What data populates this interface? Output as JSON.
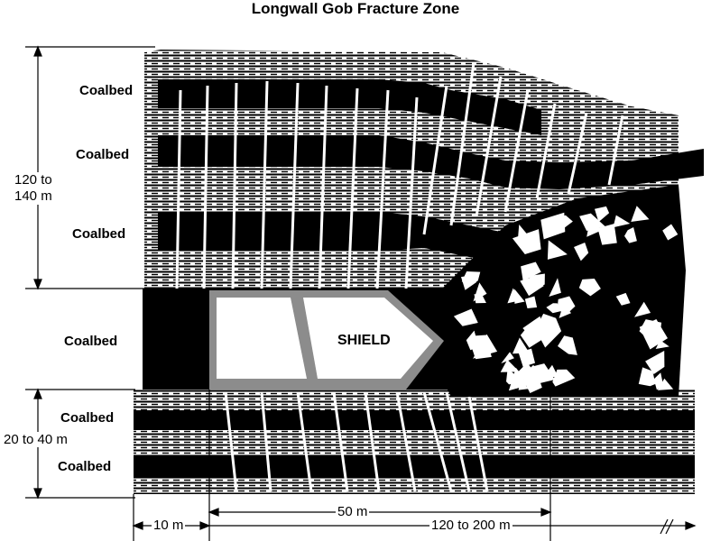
{
  "title": "Longwall Gob Fracture Zone",
  "coalbed_labels": [
    "Coalbed",
    "Coalbed",
    "Coalbed",
    "Coalbed",
    "Coalbed",
    "Coalbed"
  ],
  "shield_label": "SHIELD",
  "dimensions": {
    "upper_zone": "120 to\n140 m",
    "lower_zone": "20 to 40 m",
    "width_10": "10 m",
    "width_50": "50 m",
    "width_gob": "120 to 200 m"
  },
  "colors": {
    "ink": "#000000",
    "shield_frame": "#8c8c8c",
    "paper": "#ffffff"
  }
}
